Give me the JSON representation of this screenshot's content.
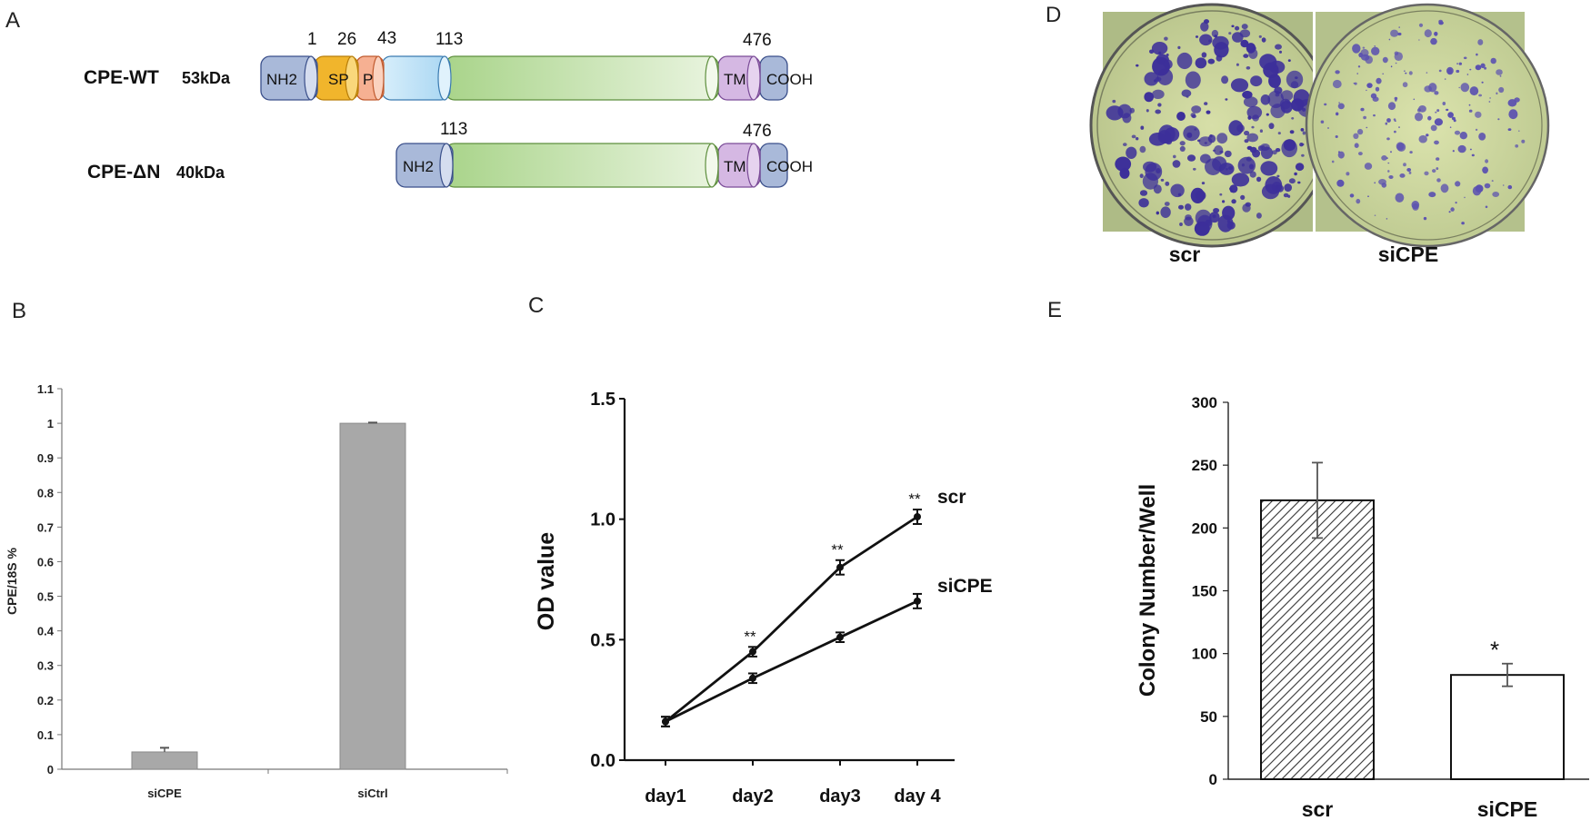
{
  "panels": {
    "A": {
      "letter": "A",
      "constructs": [
        {
          "name": "CPE-WT",
          "mass": "53kDa",
          "positions": [
            "1",
            "26",
            "43",
            "113",
            "476"
          ],
          "domains": [
            "NH2",
            "SP",
            "P",
            "",
            "",
            "TM",
            "COOH"
          ]
        },
        {
          "name": "CPE-ΔN",
          "mass": "40kDa",
          "positions": [
            "113",
            "476"
          ],
          "domains": [
            "NH2",
            "",
            "TM",
            "COOH"
          ]
        }
      ],
      "colors": {
        "nh2": "#a9b9d9",
        "sp": "#f1b52c",
        "p": "#f6b092",
        "pre": "#bfe2f6",
        "main": "#c9e5b0",
        "tm": "#d5b8e3",
        "cooh": "#a9b9d9"
      }
    },
    "D": {
      "letter": "D",
      "labels": [
        "scr",
        "siCPE"
      ]
    }
  },
  "chart_data": [
    {
      "panel": "B",
      "type": "bar",
      "categories": [
        "siCPE",
        "siCtrl"
      ],
      "values": [
        0.05,
        1.0
      ],
      "errors": [
        0.012,
        0.002
      ],
      "ylabel": "CPE/18S %",
      "ylim": [
        0,
        1.1
      ],
      "yticks": [
        "0",
        "0.1",
        "0.2",
        "0.3",
        "0.4",
        "0.5",
        "0.6",
        "0.7",
        "0.8",
        "0.9",
        "1",
        "1.1"
      ],
      "color": "#a8a8a8",
      "grid": false
    },
    {
      "panel": "C",
      "type": "line",
      "categories": [
        "day1",
        "day2",
        "day3",
        "day 4"
      ],
      "series": [
        {
          "name": "scr",
          "values": [
            0.16,
            0.45,
            0.8,
            1.01
          ],
          "errors": [
            0.02,
            0.02,
            0.03,
            0.03
          ],
          "sig": [
            "",
            "**",
            "**",
            "**"
          ]
        },
        {
          "name": "siCPE",
          "values": [
            0.16,
            0.34,
            0.51,
            0.66
          ],
          "errors": [
            0.02,
            0.02,
            0.02,
            0.03
          ],
          "sig": [
            "",
            "",
            "",
            ""
          ]
        }
      ],
      "ylabel": "OD value",
      "ylim": [
        0,
        1.5
      ],
      "yticks": [
        "0.0",
        "0.5",
        "1.0",
        "1.5"
      ],
      "grid": false
    },
    {
      "panel": "E",
      "type": "bar",
      "categories": [
        "scr",
        "siCPE"
      ],
      "values": [
        222,
        83
      ],
      "errors": [
        30,
        9
      ],
      "sig": [
        "",
        "*"
      ],
      "ylabel": "Colony Number/Well",
      "ylim": [
        0,
        300
      ],
      "yticks": [
        "0",
        "50",
        "100",
        "150",
        "200",
        "250",
        "300"
      ],
      "patterns": [
        "hatched",
        "white"
      ],
      "grid": false
    }
  ]
}
